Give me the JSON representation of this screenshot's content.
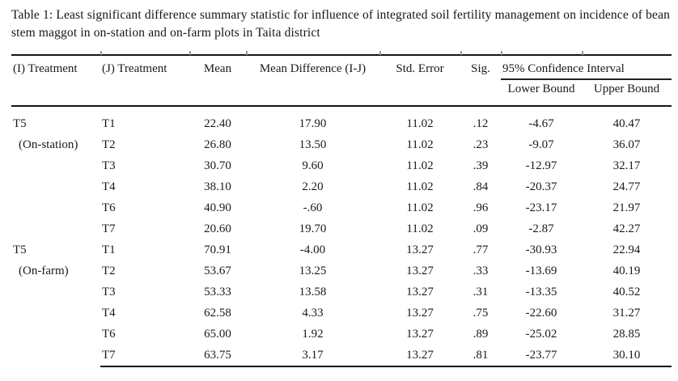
{
  "title": "Table 1: Least significant difference summary statistic for influence of integrated soil fertility management on incidence of bean stem maggot in on-station and on-farm plots in Taita district",
  "table": {
    "columns": {
      "i_treatment": "(I) Treatment",
      "j_treatment": "(J) Treatment",
      "mean": "Mean",
      "mean_difference": "Mean Difference (I-J)",
      "std_error": "Std. Error",
      "sig": "Sig.",
      "confidence_interval": "95% Confidence Interval",
      "lower_bound": "Lower Bound",
      "upper_bound": "Upper Bound"
    },
    "groups": [
      {
        "i_treatment": "T5",
        "location": "(On-station)",
        "rows": [
          {
            "j": "T1",
            "mean": "22.40",
            "mean_diff": "17.90",
            "std_error": "11.02",
            "sig": ".12",
            "lower": "-4.67",
            "upper": "40.47"
          },
          {
            "j": "T2",
            "mean": "26.80",
            "mean_diff": "13.50",
            "std_error": "11.02",
            "sig": ".23",
            "lower": "-9.07",
            "upper": "36.07"
          },
          {
            "j": "T3",
            "mean": "30.70",
            "mean_diff": "9.60",
            "std_error": "11.02",
            "sig": ".39",
            "lower": "-12.97",
            "upper": "32.17"
          },
          {
            "j": "T4",
            "mean": "38.10",
            "mean_diff": "2.20",
            "std_error": "11.02",
            "sig": ".84",
            "lower": "-20.37",
            "upper": "24.77"
          },
          {
            "j": "T6",
            "mean": "40.90",
            "mean_diff": "-.60",
            "std_error": "11.02",
            "sig": ".96",
            "lower": "-23.17",
            "upper": "21.97"
          },
          {
            "j": "T7",
            "mean": "20.60",
            "mean_diff": "19.70",
            "std_error": "11.02",
            "sig": ".09",
            "lower": "-2.87",
            "upper": "42.27"
          }
        ]
      },
      {
        "i_treatment": "T5",
        "location": "(On-farm)",
        "rows": [
          {
            "j": "T1",
            "mean": "70.91",
            "mean_diff": "-4.00",
            "std_error": "13.27",
            "sig": ".77",
            "lower": "-30.93",
            "upper": "22.94"
          },
          {
            "j": "T2",
            "mean": "53.67",
            "mean_diff": "13.25",
            "std_error": "13.27",
            "sig": ".33",
            "lower": "-13.69",
            "upper": "40.19"
          },
          {
            "j": "T3",
            "mean": "53.33",
            "mean_diff": "13.58",
            "std_error": "13.27",
            "sig": ".31",
            "lower": "-13.35",
            "upper": "40.52"
          },
          {
            "j": "T4",
            "mean": "62.58",
            "mean_diff": "4.33",
            "std_error": "13.27",
            "sig": ".75",
            "lower": "-22.60",
            "upper": "31.27"
          },
          {
            "j": "T6",
            "mean": "65.00",
            "mean_diff": "1.92",
            "std_error": "13.27",
            "sig": ".89",
            "lower": "-25.02",
            "upper": "28.85"
          },
          {
            "j": "T7",
            "mean": "63.75",
            "mean_diff": "3.17",
            "std_error": "13.27",
            "sig": ".81",
            "lower": "-23.77",
            "upper": "30.10"
          }
        ]
      }
    ]
  },
  "colors": {
    "text": "#1a1a1a",
    "rule": "#161616",
    "background": "#ffffff"
  }
}
